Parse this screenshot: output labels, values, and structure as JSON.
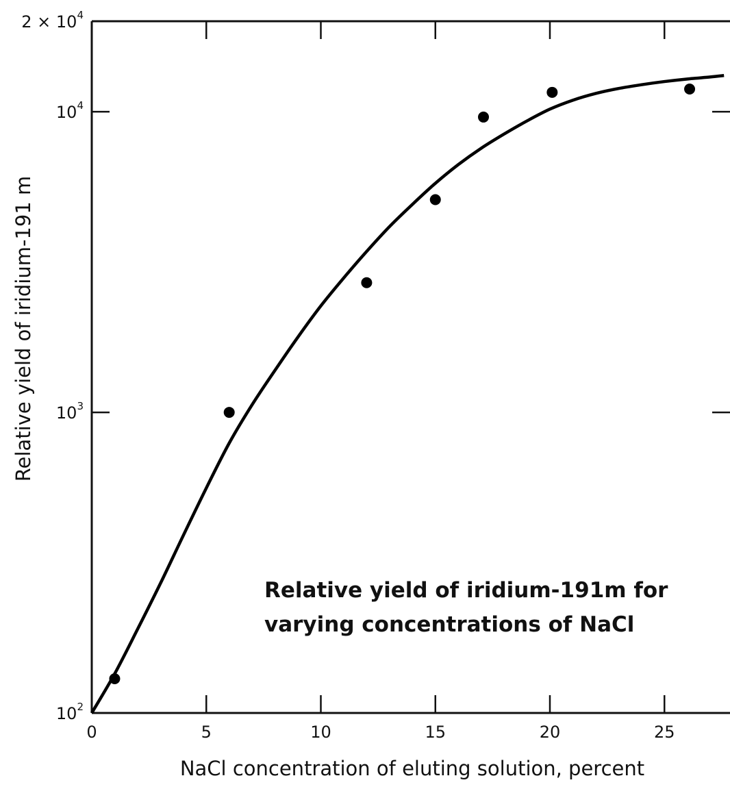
{
  "chart_data": {
    "type": "scatter",
    "title": "",
    "xlabel": "NaCl concentration of eluting solution, percent",
    "ylabel": "Relative yield of iridium-191 m",
    "xlim": [
      0,
      28
    ],
    "ylim": [
      100,
      20000
    ],
    "yscale": "log",
    "grid": false,
    "x_ticks": [
      "0",
      "5",
      "10",
      "15",
      "20",
      "25"
    ],
    "y_ticks": [
      {
        "value": 100,
        "base": "10",
        "exp": "2"
      },
      {
        "value": 1000,
        "base": "10",
        "exp": "3"
      },
      {
        "value": 10000,
        "base": "10",
        "exp": "4"
      },
      {
        "value": 20000,
        "base": "2 × 10",
        "exp": "4"
      }
    ],
    "annotation": [
      "Relative yield of iridium-191m for",
      "varying concentrations of NaCl"
    ],
    "series": [
      {
        "type": "scatter",
        "x": [
          1,
          6,
          12,
          15,
          17.1,
          20.1,
          26.1
        ],
        "y": [
          130,
          1000,
          2700,
          5100,
          9600,
          11600,
          11900
        ]
      },
      {
        "type": "line",
        "x": [
          0,
          1,
          2,
          3,
          4,
          5,
          6,
          7,
          8,
          9,
          10,
          11,
          12,
          13,
          14,
          15,
          16,
          17,
          18,
          19,
          20,
          21,
          22,
          23,
          24,
          25,
          26,
          27,
          27.6
        ],
        "y": [
          100,
          135,
          190,
          270,
          390,
          560,
          790,
          1060,
          1380,
          1780,
          2260,
          2800,
          3430,
          4150,
          4920,
          5780,
          6670,
          7560,
          8430,
          9320,
          10200,
          10920,
          11500,
          11950,
          12300,
          12600,
          12850,
          13050,
          13200
        ]
      }
    ],
    "colors": {
      "ink": "#000000",
      "background": "#ffffff"
    }
  }
}
